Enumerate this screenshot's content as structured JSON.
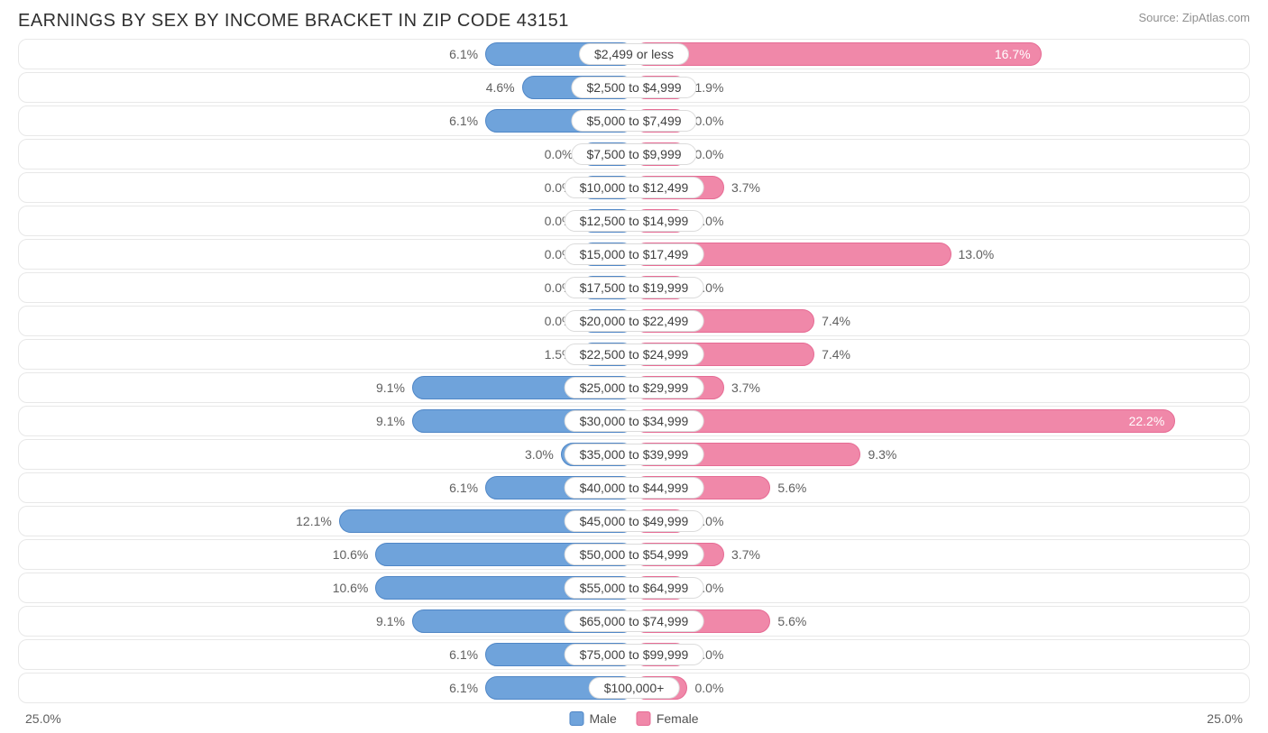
{
  "title": "EARNINGS BY SEX BY INCOME BRACKET IN ZIP CODE 43151",
  "source": "Source: ZipAtlas.com",
  "chart": {
    "type": "diverging-bar",
    "max_pct": 25.0,
    "axis_left_label": "25.0%",
    "axis_right_label": "25.0%",
    "min_bar_pct": 2.2,
    "colors": {
      "male_fill": "#6fa3db",
      "male_border": "#4f86c6",
      "female_fill": "#f088a9",
      "female_border": "#e66b94",
      "row_border": "#e8e8e8",
      "label_border": "#dcdcdc",
      "text": "#606060",
      "inside_text": "#ffffff",
      "background": "#ffffff"
    },
    "legend": [
      {
        "label": "Male",
        "fill": "#6fa3db",
        "border": "#4f86c6"
      },
      {
        "label": "Female",
        "fill": "#f088a9",
        "border": "#e66b94"
      }
    ],
    "rows": [
      {
        "category": "$2,499 or less",
        "male": 6.1,
        "female": 16.7,
        "female_inside": true
      },
      {
        "category": "$2,500 to $4,999",
        "male": 4.6,
        "female": 1.9
      },
      {
        "category": "$5,000 to $7,499",
        "male": 6.1,
        "female": 0.0
      },
      {
        "category": "$7,500 to $9,999",
        "male": 0.0,
        "female": 0.0
      },
      {
        "category": "$10,000 to $12,499",
        "male": 0.0,
        "female": 3.7
      },
      {
        "category": "$12,500 to $14,999",
        "male": 0.0,
        "female": 0.0
      },
      {
        "category": "$15,000 to $17,499",
        "male": 0.0,
        "female": 13.0
      },
      {
        "category": "$17,500 to $19,999",
        "male": 0.0,
        "female": 0.0
      },
      {
        "category": "$20,000 to $22,499",
        "male": 0.0,
        "female": 7.4
      },
      {
        "category": "$22,500 to $24,999",
        "male": 1.5,
        "female": 7.4
      },
      {
        "category": "$25,000 to $29,999",
        "male": 9.1,
        "female": 3.7
      },
      {
        "category": "$30,000 to $34,999",
        "male": 9.1,
        "female": 22.2,
        "female_inside": true
      },
      {
        "category": "$35,000 to $39,999",
        "male": 3.0,
        "female": 9.3
      },
      {
        "category": "$40,000 to $44,999",
        "male": 6.1,
        "female": 5.6
      },
      {
        "category": "$45,000 to $49,999",
        "male": 12.1,
        "female": 0.0
      },
      {
        "category": "$50,000 to $54,999",
        "male": 10.6,
        "female": 3.7
      },
      {
        "category": "$55,000 to $64,999",
        "male": 10.6,
        "female": 0.0
      },
      {
        "category": "$65,000 to $74,999",
        "male": 9.1,
        "female": 5.6
      },
      {
        "category": "$75,000 to $99,999",
        "male": 6.1,
        "female": 0.0
      },
      {
        "category": "$100,000+",
        "male": 6.1,
        "female": 0.0
      }
    ]
  }
}
